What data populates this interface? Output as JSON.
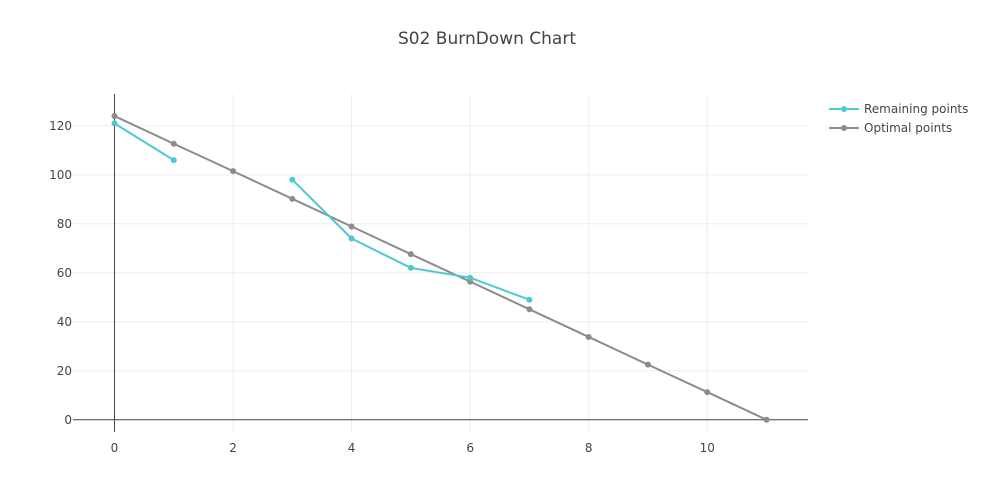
{
  "chart_data": {
    "type": "line",
    "title": "S02 BurnDown Chart",
    "xlabel": "",
    "ylabel": "",
    "xlim": [
      -0.7,
      11.7
    ],
    "ylim": [
      -5,
      133
    ],
    "x_ticks": [
      0,
      2,
      4,
      6,
      8,
      10
    ],
    "y_ticks": [
      0,
      20,
      40,
      60,
      80,
      100,
      120
    ],
    "grid": true,
    "legend_position": "top-right",
    "series": [
      {
        "name": "Remaining points",
        "color": "#4dc9d6",
        "x": [
          0,
          1,
          2,
          3,
          4,
          5,
          6,
          7
        ],
        "y": [
          121,
          106,
          null,
          98,
          74,
          62,
          58,
          49
        ]
      },
      {
        "name": "Optimal points",
        "color": "#8c8c8c",
        "x": [
          0,
          1,
          2,
          3,
          4,
          5,
          6,
          7,
          8,
          9,
          10,
          11
        ],
        "y": [
          124,
          112.7,
          101.5,
          90.2,
          78.9,
          67.6,
          56.4,
          45.1,
          33.8,
          22.5,
          11.3,
          0
        ]
      }
    ]
  }
}
